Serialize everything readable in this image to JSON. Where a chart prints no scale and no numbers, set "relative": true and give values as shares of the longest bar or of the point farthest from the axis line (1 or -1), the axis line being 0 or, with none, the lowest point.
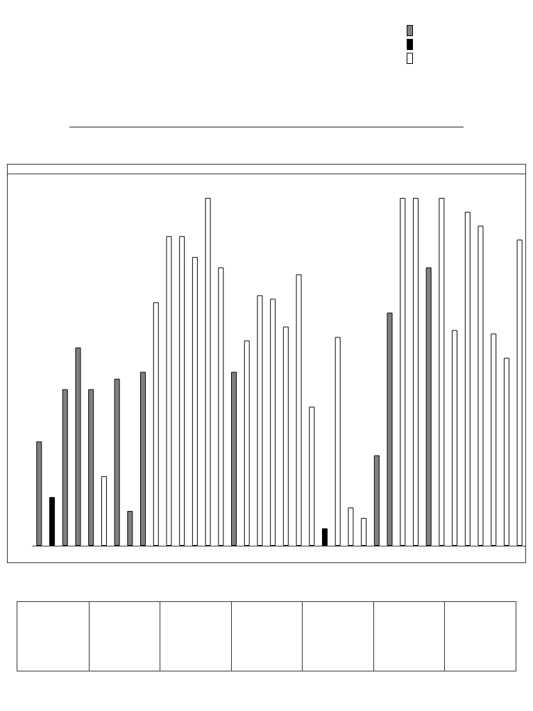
{
  "chart_data": {
    "type": "bar",
    "relative": true,
    "categories": [
      null,
      null,
      null,
      null,
      null,
      null,
      null,
      null,
      null,
      null,
      null,
      null,
      null,
      null,
      null,
      null,
      null,
      null,
      null,
      null,
      null,
      null,
      null,
      null,
      null,
      null,
      null,
      null,
      null,
      null,
      null,
      null,
      null,
      null,
      null,
      null,
      null,
      null
    ],
    "values": [
      0.3,
      0.14,
      0.45,
      0.57,
      0.45,
      0.2,
      0.48,
      0.1,
      0.5,
      0.7,
      0.89,
      0.89,
      0.83,
      1.0,
      0.8,
      0.5,
      0.59,
      0.72,
      0.71,
      0.63,
      0.78,
      0.4,
      0.05,
      0.6,
      0.11,
      0.08,
      0.26,
      0.67,
      1.0,
      1.0,
      0.8,
      1.0,
      0.62,
      0.96,
      0.92,
      0.61,
      0.54,
      0.88
    ],
    "colors": [
      "#808080",
      "#000000",
      "#808080",
      "#808080",
      "#808080",
      "#ffffff",
      "#808080",
      "#808080",
      "#808080",
      "#ffffff",
      "#ffffff",
      "#ffffff",
      "#ffffff",
      "#ffffff",
      "#ffffff",
      "#808080",
      "#ffffff",
      "#ffffff",
      "#ffffff",
      "#ffffff",
      "#ffffff",
      "#ffffff",
      "#000000",
      "#ffffff",
      "#ffffff",
      "#ffffff",
      "#808080",
      "#808080",
      "#ffffff",
      "#ffffff",
      "#808080",
      "#ffffff",
      "#ffffff",
      "#ffffff",
      "#ffffff",
      "#ffffff",
      "#ffffff",
      "#ffffff"
    ]
  }
}
